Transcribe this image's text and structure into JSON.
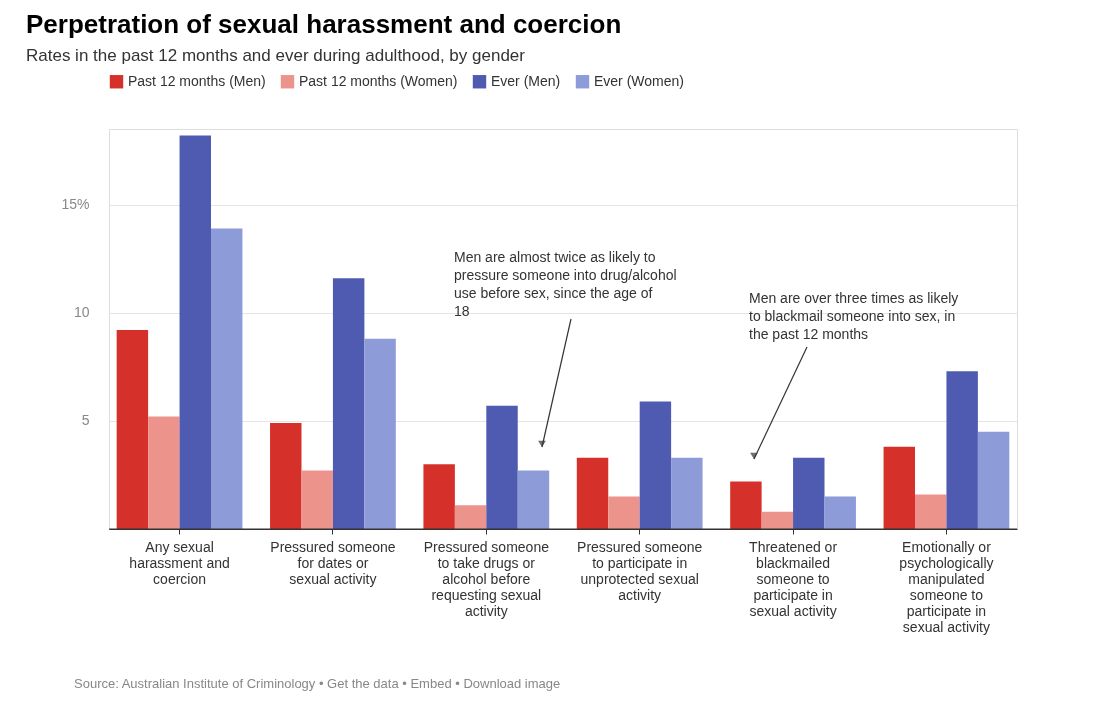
{
  "chart_data": {
    "type": "bar",
    "title": "Perpetration of sexual harassment and coercion",
    "subtitle": "Rates in the past 12 months and ever during adulthood, by gender",
    "categories": [
      "Any sexual harassment and coercion",
      "Pressured someone for dates or sexual activity",
      "Pressured someone to take drugs or alcohol before requesting sexual activity",
      "Pressured someone to participate in unprotected sexual activity",
      "Threatened or blackmailed someone to participate in sexual activity",
      "Emotionally or psychologically manipulated someone to participate in sexual activity"
    ],
    "series": [
      {
        "name": "Past 12 months (Men)",
        "color": "#d5312a",
        "values": [
          9.2,
          4.9,
          3.0,
          3.3,
          2.2,
          3.8
        ]
      },
      {
        "name": "Past 12 months (Women)",
        "color": "#ec948c",
        "values": [
          5.2,
          2.7,
          1.1,
          1.5,
          0.8,
          1.6
        ]
      },
      {
        "name": "Ever (Men)",
        "color": "#4f5bb0",
        "values": [
          18.2,
          11.6,
          5.7,
          5.9,
          3.3,
          7.3
        ]
      },
      {
        "name": "Ever (Women)",
        "color": "#8e9bd9",
        "values": [
          13.9,
          8.8,
          2.7,
          3.3,
          1.5,
          4.5
        ]
      }
    ],
    "ylim": [
      0,
      18.5
    ],
    "yticks": [
      5,
      10,
      {
        "value": 15,
        "label": "15%"
      }
    ],
    "grid": "y",
    "legend": "top left",
    "annotations": [
      "Men are almost twice as likely to pressure someone into drug/alcohol use before sex, since the age of 18",
      "Men are over three times as likely to blackmail someone into sex, in the past 12 months",
      "Source: Australian Institute of Criminology • Get the data • Embed • Download image"
    ]
  }
}
